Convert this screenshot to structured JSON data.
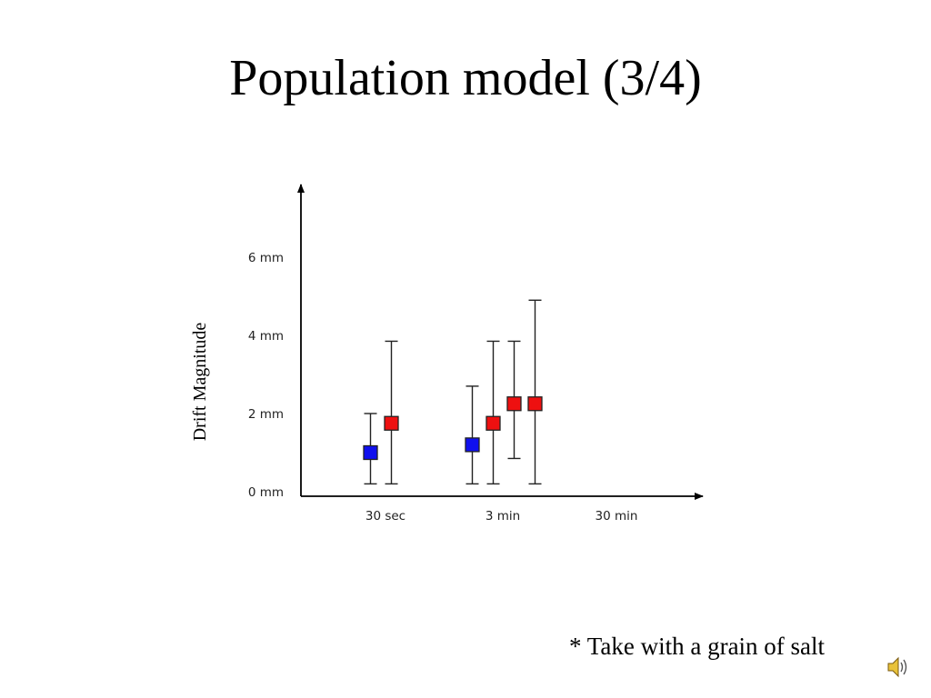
{
  "slide": {
    "title": "Population model (3/4)",
    "footnote": "* Take with a grain of salt",
    "icon": "speaker-icon"
  },
  "chart_data": {
    "type": "scatter",
    "title": "",
    "xlabel": "",
    "ylabel": "Drift Magnitude",
    "categories": [
      "30 sec",
      "3 min",
      "30 min"
    ],
    "ylim": [
      0,
      8
    ],
    "y_ticks": [
      0,
      2,
      4,
      6
    ],
    "y_tick_labels": [
      "0 mm",
      "2 mm",
      "4 mm",
      "6 mm"
    ],
    "grid": false,
    "points": [
      {
        "category": "30 sec",
        "offset": -0.5,
        "y": 1.0,
        "y_low": 0.2,
        "y_high": 2.0,
        "color": "#1010ee"
      },
      {
        "category": "30 sec",
        "offset": 0.5,
        "y": 1.75,
        "y_low": 0.2,
        "y_high": 3.85,
        "color": "#ee1010"
      },
      {
        "category": "3 min",
        "offset": -0.5,
        "y": 1.2,
        "y_low": 0.2,
        "y_high": 2.7,
        "color": "#1010ee"
      },
      {
        "category": "3 min",
        "offset": 0.5,
        "y": 1.75,
        "y_low": 0.2,
        "y_high": 3.85,
        "color": "#ee1010"
      },
      {
        "category": "3 min",
        "offset": 1.5,
        "y": 2.25,
        "y_low": 0.85,
        "y_high": 3.85,
        "color": "#ee1010"
      },
      {
        "category": "3 min",
        "offset": 2.5,
        "y": 2.25,
        "y_low": 0.2,
        "y_high": 4.9,
        "color": "#ee1010"
      }
    ]
  }
}
